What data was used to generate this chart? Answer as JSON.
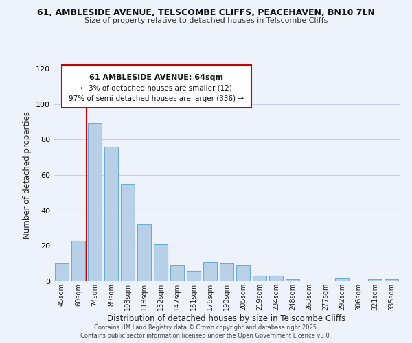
{
  "title": "61, AMBLESIDE AVENUE, TELSCOMBE CLIFFS, PEACEHAVEN, BN10 7LN",
  "subtitle": "Size of property relative to detached houses in Telscombe Cliffs",
  "xlabel": "Distribution of detached houses by size in Telscombe Cliffs",
  "ylabel": "Number of detached properties",
  "categories": [
    "45sqm",
    "60sqm",
    "74sqm",
    "89sqm",
    "103sqm",
    "118sqm",
    "132sqm",
    "147sqm",
    "161sqm",
    "176sqm",
    "190sqm",
    "205sqm",
    "219sqm",
    "234sqm",
    "248sqm",
    "263sqm",
    "277sqm",
    "292sqm",
    "306sqm",
    "321sqm",
    "335sqm"
  ],
  "values": [
    10,
    23,
    89,
    76,
    55,
    32,
    21,
    9,
    6,
    11,
    10,
    9,
    3,
    3,
    1,
    0,
    0,
    2,
    0,
    1,
    1
  ],
  "bar_color": "#b8d0e8",
  "bar_edge_color": "#6aaed6",
  "vline_color": "#cc0000",
  "annotation_title": "61 AMBLESIDE AVENUE: 64sqm",
  "annotation_line1": "← 3% of detached houses are smaller (12)",
  "annotation_line2": "97% of semi-detached houses are larger (336) →",
  "annotation_box_color": "#ffffff",
  "annotation_border_color": "#cc0000",
  "ylim": [
    0,
    120
  ],
  "yticks": [
    0,
    20,
    40,
    60,
    80,
    100,
    120
  ],
  "footer1": "Contains HM Land Registry data © Crown copyright and database right 2025.",
  "footer2": "Contains public sector information licensed under the Open Government Licence v3.0.",
  "bg_color": "#eef2fb",
  "plot_bg_color": "#eef2fb",
  "grid_color": "#c5cfe8"
}
